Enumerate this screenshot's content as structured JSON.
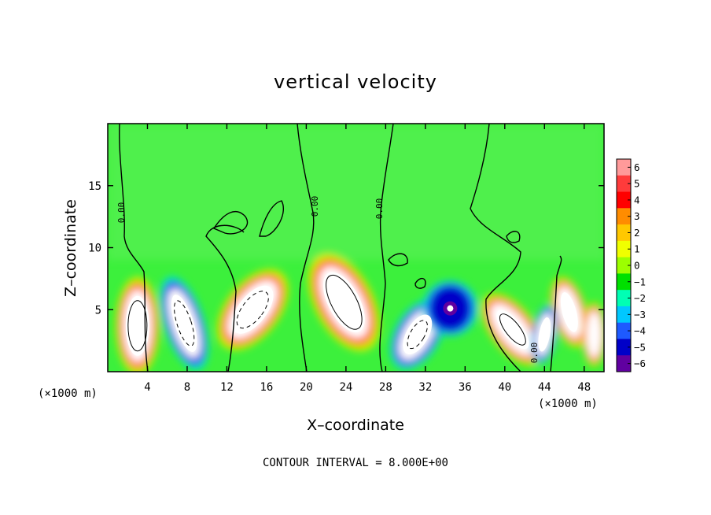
{
  "chart_data": {
    "type": "heatmap",
    "title": "vertical velocity",
    "xlabel": "X–coordinate",
    "ylabel": "Z–coordinate",
    "x_unit_left": "(×1000 m)",
    "x_unit_right": "(×1000 m)",
    "xlim": [
      0,
      50
    ],
    "ylim": [
      0,
      20
    ],
    "x_ticks": [
      "4",
      "8",
      "12",
      "16",
      "20",
      "24",
      "28",
      "32",
      "36",
      "40",
      "44",
      "48"
    ],
    "x_tick_values": [
      4,
      8,
      12,
      16,
      20,
      24,
      28,
      32,
      36,
      40,
      44,
      48
    ],
    "y_ticks": [
      "5",
      "10",
      "15"
    ],
    "y_tick_values": [
      5,
      10,
      15
    ],
    "contour_interval_text": "CONTOUR INTERVAL = 8.000E+00",
    "zero_contour_label": "0.00",
    "colorbar": {
      "labels": [
        "6",
        "5",
        "4",
        "3",
        "2",
        "1",
        "0",
        "−1",
        "−2",
        "−3",
        "−4",
        "−5",
        "−6"
      ],
      "values": [
        6,
        5,
        4,
        3,
        2,
        1,
        0,
        -1,
        -2,
        -3,
        -4,
        -5,
        -6
      ],
      "colors": [
        "#ff9a9a",
        "#ff3b3b",
        "#ff0000",
        "#ff8c00",
        "#ffc800",
        "#f0ff00",
        "#9cff00",
        "#00e000",
        "#00ffb4",
        "#00c8ff",
        "#1e5aff",
        "#0000c8",
        "#6000a0"
      ]
    },
    "updrafts": [
      {
        "x": 3,
        "z": 3.7,
        "w": 9
      },
      {
        "x": 14.6,
        "z": 5.0,
        "w": 9
      },
      {
        "x": 23.8,
        "z": 5.6,
        "w": 9
      },
      {
        "x": 40.8,
        "z": 3.4,
        "w": 8
      },
      {
        "x": 46.5,
        "z": 4.8,
        "w": 7
      },
      {
        "x": 49,
        "z": 3,
        "w": 8
      }
    ],
    "downdrafts": [
      {
        "x": 7.7,
        "z": 3.9,
        "w": -8
      },
      {
        "x": 31.2,
        "z": 3.0,
        "w": -8
      },
      {
        "x": 34.5,
        "z": 5.1,
        "w": -6
      },
      {
        "x": 44.0,
        "z": 3.0,
        "w": -8
      }
    ]
  }
}
